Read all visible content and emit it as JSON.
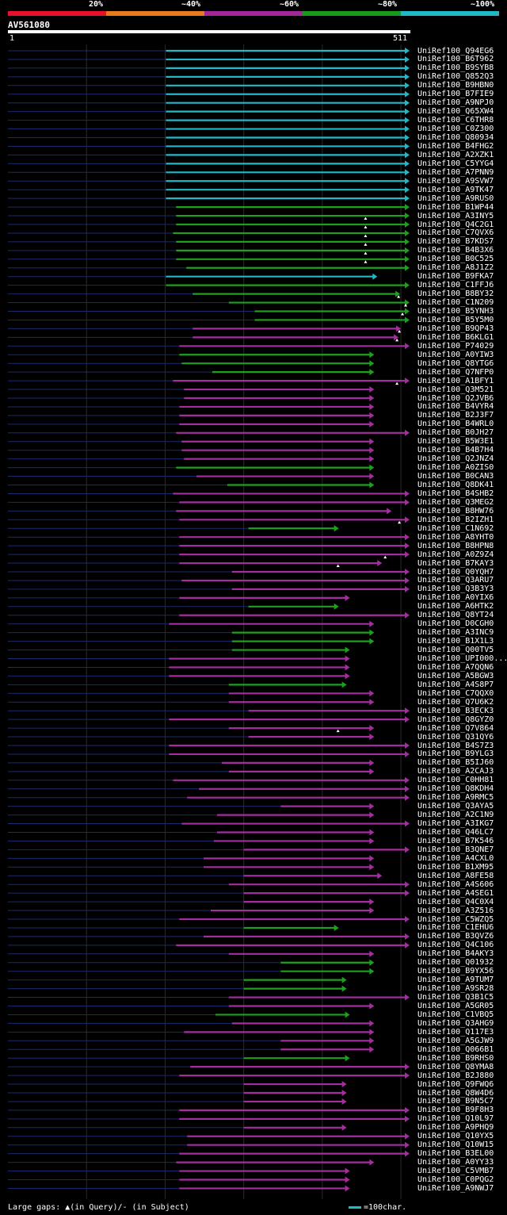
{
  "query": {
    "name": "AV561080",
    "start_label": "1",
    "end_label": "511",
    "length": 511
  },
  "identity_scale": [
    {
      "label": "20%",
      "color": "#e8102a"
    },
    {
      "label": "~40%",
      "color": "#e67a1c"
    },
    {
      "label": "~60%",
      "color": "#a02898"
    },
    {
      "label": "~80%",
      "color": "#1a9a1a"
    },
    {
      "label": "~100%",
      "color": "#20b8c4"
    }
  ],
  "legend": {
    "gaps_text": "Large gaps: ▲(in Query)/- (in Subject)",
    "scale_text": "=100char."
  },
  "chart_data": {
    "type": "alignment-overview",
    "x_range": [
      1,
      511
    ],
    "hits": [
      {
        "name": "UniRef100_Q94EG6",
        "start": 201,
        "end": 511,
        "class": "c100",
        "gap": null
      },
      {
        "name": "UniRef100_B6T962",
        "start": 201,
        "end": 511,
        "class": "c100",
        "gap": null
      },
      {
        "name": "UniRef100_B9SYB8",
        "start": 201,
        "end": 511,
        "class": "c100",
        "gap": null
      },
      {
        "name": "UniRef100_Q852Q3",
        "start": 201,
        "end": 511,
        "class": "c100",
        "gap": null
      },
      {
        "name": "UniRef100_B9HBN0",
        "start": 201,
        "end": 511,
        "class": "c100",
        "gap": null
      },
      {
        "name": "UniRef100_B7FIE9",
        "start": 201,
        "end": 511,
        "class": "c100",
        "gap": null
      },
      {
        "name": "UniRef100_A9NPJ0",
        "start": 201,
        "end": 511,
        "class": "c100",
        "gap": null
      },
      {
        "name": "UniRef100_Q65XW4",
        "start": 201,
        "end": 511,
        "class": "c100",
        "gap": null
      },
      {
        "name": "UniRef100_C6THR8",
        "start": 201,
        "end": 511,
        "class": "c100",
        "gap": null
      },
      {
        "name": "UniRef100_C0Z300",
        "start": 201,
        "end": 511,
        "class": "c100",
        "gap": null
      },
      {
        "name": "UniRef100_Q80934",
        "start": 201,
        "end": 511,
        "class": "c100",
        "gap": null
      },
      {
        "name": "UniRef100_B4FHG2",
        "start": 201,
        "end": 511,
        "class": "c100",
        "gap": null
      },
      {
        "name": "UniRef100_A2XZK1",
        "start": 201,
        "end": 511,
        "class": "c100",
        "gap": null
      },
      {
        "name": "UniRef100_C5YYG4",
        "start": 201,
        "end": 511,
        "class": "c100",
        "gap": null
      },
      {
        "name": "UniRef100_A7PNN9",
        "start": 201,
        "end": 511,
        "class": "c100",
        "gap": null
      },
      {
        "name": "UniRef100_A9SVW7",
        "start": 201,
        "end": 511,
        "class": "c100",
        "gap": null
      },
      {
        "name": "UniRef100_A9TK47",
        "start": 201,
        "end": 511,
        "class": "c100",
        "gap": null
      },
      {
        "name": "UniRef100_A9RUS0",
        "start": 201,
        "end": 511,
        "class": "c100",
        "gap": null
      },
      {
        "name": "UniRef100_B1WP44",
        "start": 214,
        "end": 511,
        "class": "c80",
        "gap": null
      },
      {
        "name": "UniRef100_A3INY5",
        "start": 214,
        "end": 511,
        "class": "c80",
        "gap": 455
      },
      {
        "name": "UniRef100_Q4C2G1",
        "start": 214,
        "end": 511,
        "class": "c80",
        "gap": 455
      },
      {
        "name": "UniRef100_C7QVX6",
        "start": 210,
        "end": 511,
        "class": "c80",
        "gap": 455
      },
      {
        "name": "UniRef100_B7KDS7",
        "start": 214,
        "end": 511,
        "class": "c80",
        "gap": 455
      },
      {
        "name": "UniRef100_B4B3X6",
        "start": 214,
        "end": 511,
        "class": "c80",
        "gap": 455
      },
      {
        "name": "UniRef100_B0C525",
        "start": 214,
        "end": 511,
        "class": "c80",
        "gap": 455
      },
      {
        "name": "UniRef100_A8J1Z2",
        "start": 227,
        "end": 511,
        "class": "c80",
        "gap": null
      },
      {
        "name": "UniRef100_B9FKA7",
        "start": 201,
        "end": 470,
        "class": "c100",
        "gap": null
      },
      {
        "name": "UniRef100_C1FFJ6",
        "start": 201,
        "end": 511,
        "class": "c80",
        "gap": null
      },
      {
        "name": "UniRef100_B8BY32",
        "start": 235,
        "end": 499,
        "class": "c80",
        "gap": 497
      },
      {
        "name": "UniRef100_C1N209",
        "start": 281,
        "end": 511,
        "class": "c80",
        "gap": 506
      },
      {
        "name": "UniRef100_B5YNH3",
        "start": 314,
        "end": 511,
        "class": "c80",
        "gap": 502
      },
      {
        "name": "UniRef100_B5Y5M0",
        "start": 314,
        "end": 511,
        "class": "c80",
        "gap": null
      },
      {
        "name": "UniRef100_B9QP43",
        "start": 235,
        "end": 500,
        "class": "c60",
        "gap": 498
      },
      {
        "name": "UniRef100_B6KLG1",
        "start": 235,
        "end": 497,
        "class": "c60",
        "gap": 495
      },
      {
        "name": "UniRef100_P74029",
        "start": 218,
        "end": 511,
        "class": "c60",
        "gap": null
      },
      {
        "name": "UniRef100_A0YIW3",
        "start": 218,
        "end": 466,
        "class": "c80",
        "gap": null
      },
      {
        "name": "UniRef100_Q8YTG6",
        "start": 221,
        "end": 466,
        "class": "c80",
        "gap": null
      },
      {
        "name": "UniRef100_Q7NFP0",
        "start": 260,
        "end": 466,
        "class": "c80",
        "gap": null
      },
      {
        "name": "UniRef100_A1BFY1",
        "start": 210,
        "end": 511,
        "class": "c60",
        "gap": 495
      },
      {
        "name": "UniRef100_Q3M521",
        "start": 224,
        "end": 466,
        "class": "c60",
        "gap": null
      },
      {
        "name": "UniRef100_Q2JVB6",
        "start": 224,
        "end": 466,
        "class": "c60",
        "gap": null
      },
      {
        "name": "UniRef100_B4VYR4",
        "start": 218,
        "end": 466,
        "class": "c60",
        "gap": null
      },
      {
        "name": "UniRef100_B2J3F7",
        "start": 218,
        "end": 466,
        "class": "c60",
        "gap": null
      },
      {
        "name": "UniRef100_B4WRL0",
        "start": 218,
        "end": 466,
        "class": "c60",
        "gap": null
      },
      {
        "name": "UniRef100_B0JH27",
        "start": 214,
        "end": 511,
        "class": "c60",
        "gap": null
      },
      {
        "name": "UniRef100_B5W3E1",
        "start": 221,
        "end": 466,
        "class": "c60",
        "gap": null
      },
      {
        "name": "UniRef100_B4B7H4",
        "start": 221,
        "end": 466,
        "class": "c60",
        "gap": null
      },
      {
        "name": "UniRef100_Q2JNZ4",
        "start": 224,
        "end": 466,
        "class": "c60",
        "gap": null
      },
      {
        "name": "UniRef100_A0ZIS0",
        "start": 214,
        "end": 466,
        "class": "c80",
        "gap": null
      },
      {
        "name": "UniRef100_B0CAN3",
        "start": 240,
        "end": 466,
        "class": "c60",
        "gap": null
      },
      {
        "name": "UniRef100_Q8DK41",
        "start": 279,
        "end": 466,
        "class": "c80",
        "gap": null
      },
      {
        "name": "UniRef100_B4SHB2",
        "start": 210,
        "end": 511,
        "class": "c60",
        "gap": null
      },
      {
        "name": "UniRef100_Q3MEG2",
        "start": 218,
        "end": 511,
        "class": "c60",
        "gap": null
      },
      {
        "name": "UniRef100_B8HW76",
        "start": 214,
        "end": 488,
        "class": "c60",
        "gap": null
      },
      {
        "name": "UniRef100_B2IZH1",
        "start": 218,
        "end": 511,
        "class": "c60",
        "gap": 498
      },
      {
        "name": "UniRef100_C1N692",
        "start": 306,
        "end": 421,
        "class": "c80",
        "gap": null
      },
      {
        "name": "UniRef100_A8YHT0",
        "start": 218,
        "end": 511,
        "class": "c60",
        "gap": null
      },
      {
        "name": "UniRef100_B8HPN8",
        "start": 218,
        "end": 511,
        "class": "c60",
        "gap": null
      },
      {
        "name": "UniRef100_A0Z9Z4",
        "start": 218,
        "end": 511,
        "class": "c60",
        "gap": 480
      },
      {
        "name": "UniRef100_B7KAY3",
        "start": 218,
        "end": 476,
        "class": "c60",
        "gap": 420
      },
      {
        "name": "UniRef100_Q0YQH7",
        "start": 285,
        "end": 511,
        "class": "c60",
        "gap": null
      },
      {
        "name": "UniRef100_Q3ARU7",
        "start": 221,
        "end": 511,
        "class": "c60",
        "gap": null
      },
      {
        "name": "UniRef100_Q3B3Y3",
        "start": 285,
        "end": 511,
        "class": "c60",
        "gap": null
      },
      {
        "name": "UniRef100_A0YIX6",
        "start": 218,
        "end": 435,
        "class": "c60",
        "gap": null
      },
      {
        "name": "UniRef100_A6HTK2",
        "start": 306,
        "end": 421,
        "class": "c80",
        "gap": null
      },
      {
        "name": "UniRef100_Q8YT24",
        "start": 218,
        "end": 511,
        "class": "c60",
        "gap": null
      },
      {
        "name": "UniRef100_D0CGH0",
        "start": 205,
        "end": 466,
        "class": "c60",
        "gap": null
      },
      {
        "name": "UniRef100_A3INC9",
        "start": 285,
        "end": 466,
        "class": "c80",
        "gap": null
      },
      {
        "name": "UniRef100_B1X1L3",
        "start": 285,
        "end": 466,
        "class": "c80",
        "gap": null
      },
      {
        "name": "UniRef100_Q00TV5",
        "start": 285,
        "end": 435,
        "class": "c80",
        "gap": null
      },
      {
        "name": "UniRef100_UPI000...",
        "start": 205,
        "end": 435,
        "class": "c60",
        "gap": null
      },
      {
        "name": "UniRef100_A7QQN6",
        "start": 205,
        "end": 435,
        "class": "c60",
        "gap": null
      },
      {
        "name": "UniRef100_A5BGW3",
        "start": 205,
        "end": 435,
        "class": "c60",
        "gap": null
      },
      {
        "name": "UniRef100_A4S8P7",
        "start": 281,
        "end": 431,
        "class": "c80",
        "gap": null
      },
      {
        "name": "UniRef100_C7QQX0",
        "start": 281,
        "end": 466,
        "class": "c60",
        "gap": null
      },
      {
        "name": "UniRef100_Q7U6K2",
        "start": 281,
        "end": 466,
        "class": "c60",
        "gap": null
      },
      {
        "name": "UniRef100_B3ECK3",
        "start": 306,
        "end": 511,
        "class": "c60",
        "gap": null
      },
      {
        "name": "UniRef100_Q8GYZ0",
        "start": 205,
        "end": 511,
        "class": "c60",
        "gap": null
      },
      {
        "name": "UniRef100_Q7V864",
        "start": 281,
        "end": 466,
        "class": "c60",
        "gap": 420
      },
      {
        "name": "UniRef100_Q31QY6",
        "start": 306,
        "end": 466,
        "class": "c60",
        "gap": null
      },
      {
        "name": "UniRef100_B4S7Z3",
        "start": 205,
        "end": 511,
        "class": "c60",
        "gap": null
      },
      {
        "name": "UniRef100_B9YLG3",
        "start": 205,
        "end": 511,
        "class": "c60",
        "gap": null
      },
      {
        "name": "UniRef100_B5IJ60",
        "start": 272,
        "end": 466,
        "class": "c60",
        "gap": null
      },
      {
        "name": "UniRef100_A2CAJ3",
        "start": 281,
        "end": 466,
        "class": "c60",
        "gap": null
      },
      {
        "name": "UniRef100_C0HH81",
        "start": 210,
        "end": 511,
        "class": "c60",
        "gap": null
      },
      {
        "name": "UniRef100_Q8KDH4",
        "start": 243,
        "end": 511,
        "class": "c60",
        "gap": null
      },
      {
        "name": "UniRef100_A9RMC5",
        "start": 228,
        "end": 511,
        "class": "c60",
        "gap": null
      },
      {
        "name": "UniRef100_Q3AYA5",
        "start": 347,
        "end": 466,
        "class": "c60",
        "gap": null
      },
      {
        "name": "UniRef100_A2C1N9",
        "start": 266,
        "end": 466,
        "class": "c60",
        "gap": null
      },
      {
        "name": "UniRef100_A3IKG7",
        "start": 221,
        "end": 511,
        "class": "c60",
        "gap": null
      },
      {
        "name": "UniRef100_Q46LC7",
        "start": 266,
        "end": 466,
        "class": "c60",
        "gap": null
      },
      {
        "name": "UniRef100_B7K546",
        "start": 262,
        "end": 466,
        "class": "c60",
        "gap": null
      },
      {
        "name": "UniRef100_B3QNE7",
        "start": 300,
        "end": 511,
        "class": "c60",
        "gap": null
      },
      {
        "name": "UniRef100_A4CXL0",
        "start": 249,
        "end": 466,
        "class": "c60",
        "gap": null
      },
      {
        "name": "UniRef100_B1XM95",
        "start": 249,
        "end": 466,
        "class": "c60",
        "gap": null
      },
      {
        "name": "UniRef100_A8FE58",
        "start": 300,
        "end": 476,
        "class": "c60",
        "gap": null
      },
      {
        "name": "UniRef100_A4S606",
        "start": 281,
        "end": 511,
        "class": "c60",
        "gap": null
      },
      {
        "name": "UniRef100_A4SEG1",
        "start": 300,
        "end": 511,
        "class": "c60",
        "gap": null
      },
      {
        "name": "UniRef100_Q4C0X4",
        "start": 300,
        "end": 466,
        "class": "c60",
        "gap": null
      },
      {
        "name": "UniRef100_A3Z516",
        "start": 258,
        "end": 466,
        "class": "c60",
        "gap": null
      },
      {
        "name": "UniRef100_C5WZQ5",
        "start": 218,
        "end": 511,
        "class": "c60",
        "gap": null
      },
      {
        "name": "UniRef100_C1EHU6",
        "start": 300,
        "end": 421,
        "class": "c80",
        "gap": null
      },
      {
        "name": "UniRef100_B3QVZ6",
        "start": 249,
        "end": 511,
        "class": "c60",
        "gap": null
      },
      {
        "name": "UniRef100_Q4C106",
        "start": 214,
        "end": 511,
        "class": "c60",
        "gap": null
      },
      {
        "name": "UniRef100_B4AKY3",
        "start": 281,
        "end": 466,
        "class": "c60",
        "gap": null
      },
      {
        "name": "UniRef100_Q01932",
        "start": 347,
        "end": 466,
        "class": "c80",
        "gap": null
      },
      {
        "name": "UniRef100_B9YX56",
        "start": 347,
        "end": 466,
        "class": "c80",
        "gap": null
      },
      {
        "name": "UniRef100_A9TUM7",
        "start": 300,
        "end": 431,
        "class": "c80",
        "gap": null
      },
      {
        "name": "UniRef100_A9SR28",
        "start": 300,
        "end": 431,
        "class": "c80",
        "gap": null
      },
      {
        "name": "UniRef100_Q3B1C5",
        "start": 281,
        "end": 511,
        "class": "c60",
        "gap": null
      },
      {
        "name": "UniRef100_A5GR05",
        "start": 281,
        "end": 466,
        "class": "c60",
        "gap": null
      },
      {
        "name": "UniRef100_C1VBQ5",
        "start": 264,
        "end": 435,
        "class": "c80",
        "gap": null
      },
      {
        "name": "UniRef100_Q3AHG9",
        "start": 285,
        "end": 466,
        "class": "c60",
        "gap": null
      },
      {
        "name": "UniRef100_Q117E3",
        "start": 224,
        "end": 466,
        "class": "c60",
        "gap": null
      },
      {
        "name": "UniRef100_A5GJW9",
        "start": 347,
        "end": 466,
        "class": "c60",
        "gap": null
      },
      {
        "name": "UniRef100_Q066B1",
        "start": 347,
        "end": 466,
        "class": "c60",
        "gap": null
      },
      {
        "name": "UniRef100_B9RHS0",
        "start": 300,
        "end": 435,
        "class": "c80",
        "gap": null
      },
      {
        "name": "UniRef100_Q8YMA8",
        "start": 232,
        "end": 511,
        "class": "c60",
        "gap": null
      },
      {
        "name": "UniRef100_B2J880",
        "start": 218,
        "end": 511,
        "class": "c60",
        "gap": null
      },
      {
        "name": "UniRef100_Q9FWQ6",
        "start": 300,
        "end": 431,
        "class": "c60",
        "gap": null
      },
      {
        "name": "UniRef100_Q8W4D6",
        "start": 300,
        "end": 431,
        "class": "c60",
        "gap": null
      },
      {
        "name": "UniRef100_B9N5C7",
        "start": 300,
        "end": 431,
        "class": "c60",
        "gap": null
      },
      {
        "name": "UniRef100_B9F8H3",
        "start": 218,
        "end": 511,
        "class": "c60",
        "gap": null
      },
      {
        "name": "UniRef100_Q10L97",
        "start": 218,
        "end": 511,
        "class": "c60",
        "gap": null
      },
      {
        "name": "UniRef100_A9PHQ9",
        "start": 300,
        "end": 431,
        "class": "c60",
        "gap": null
      },
      {
        "name": "UniRef100_Q10YX5",
        "start": 228,
        "end": 511,
        "class": "c60",
        "gap": null
      },
      {
        "name": "UniRef100_Q10W15",
        "start": 228,
        "end": 511,
        "class": "c60",
        "gap": null
      },
      {
        "name": "UniRef100_B3EL00",
        "start": 218,
        "end": 511,
        "class": "c60",
        "gap": null
      },
      {
        "name": "UniRef100_A0YY33",
        "start": 214,
        "end": 466,
        "class": "c60",
        "gap": null
      },
      {
        "name": "UniRef100_C5VMB7",
        "start": 218,
        "end": 435,
        "class": "c60",
        "gap": null
      },
      {
        "name": "UniRef100_C0PQG2",
        "start": 218,
        "end": 435,
        "class": "c60",
        "gap": null
      },
      {
        "name": "UniRef100_A9NWJ7",
        "start": 218,
        "end": 435,
        "class": "c60",
        "gap": null
      }
    ]
  },
  "colors": {
    "c100": "#22b8c8",
    "c80": "#1ea01e",
    "c60": "#a42ea0",
    "lead": "#1c2a6a",
    "grid": "#2a2a2a"
  }
}
